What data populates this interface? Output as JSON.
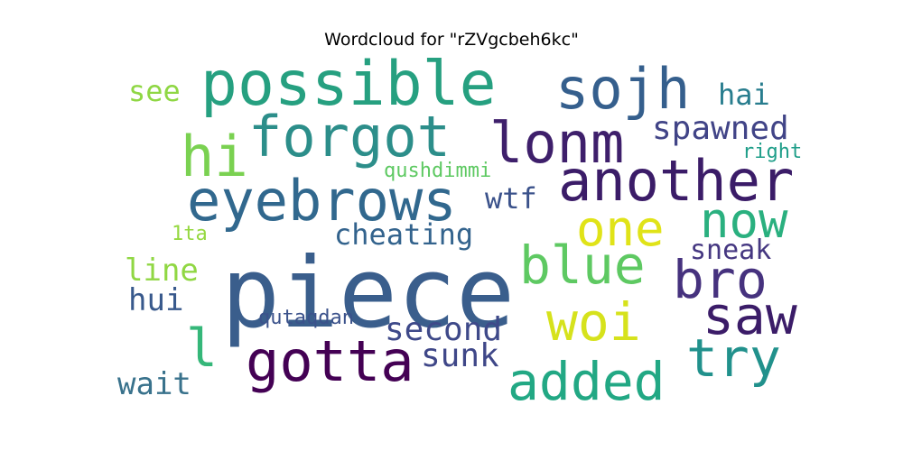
{
  "title": "Wordcloud for \"rZVgcbeh6kc\"",
  "words": [
    {
      "text": "piece",
      "color": "#3a5e8c"
    },
    {
      "text": "possible",
      "color": "#26a080"
    },
    {
      "text": "forgot",
      "color": "#2c8e8a"
    },
    {
      "text": "sojh",
      "color": "#355f8d"
    },
    {
      "text": "lonm",
      "color": "#3e1f6b"
    },
    {
      "text": "another",
      "color": "#3b1c68"
    },
    {
      "text": "eyebrows",
      "color": "#31688e"
    },
    {
      "text": "hi",
      "color": "#7ad151"
    },
    {
      "text": "now",
      "color": "#2ab07f"
    },
    {
      "text": "one",
      "color": "#e0e318"
    },
    {
      "text": "blue",
      "color": "#5ec962"
    },
    {
      "text": "bro",
      "color": "#46327e"
    },
    {
      "text": "saw",
      "color": "#3b1c68"
    },
    {
      "text": "woi",
      "color": "#d6e21c"
    },
    {
      "text": "gotta",
      "color": "#440154"
    },
    {
      "text": "l",
      "color": "#35b779"
    },
    {
      "text": "try",
      "color": "#21918c"
    },
    {
      "text": "added",
      "color": "#22a884"
    },
    {
      "text": "second",
      "color": "#3e4989"
    },
    {
      "text": "sunk",
      "color": "#3f4788"
    },
    {
      "text": "wait",
      "color": "#39728c"
    },
    {
      "text": "hui",
      "color": "#38598c"
    },
    {
      "text": "line",
      "color": "#90d743"
    },
    {
      "text": "cheating",
      "color": "#33638d"
    },
    {
      "text": "wtf",
      "color": "#3b528b"
    },
    {
      "text": "spawned",
      "color": "#414487"
    },
    {
      "text": "hai",
      "color": "#287d8e"
    },
    {
      "text": "right",
      "color": "#1f9e89"
    },
    {
      "text": "qushdimmi",
      "color": "#5ec962"
    },
    {
      "text": "see",
      "color": "#8fd744"
    },
    {
      "text": "1ta",
      "color": "#95d840"
    },
    {
      "text": "sneak",
      "color": "#453781"
    },
    {
      "text": "qutaqdan",
      "color": "#3b528b"
    }
  ]
}
